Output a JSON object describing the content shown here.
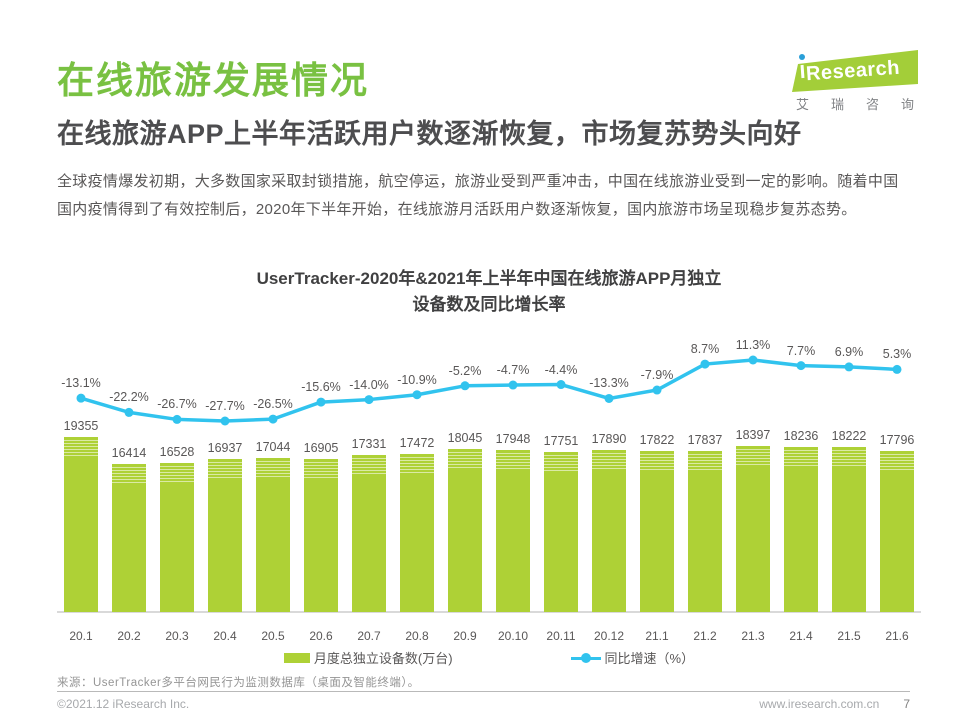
{
  "page": {
    "title": "在线旅游发展情况",
    "subtitle": "在线旅游APP上半年活跃用户数逐渐恢复，市场复苏势头向好",
    "body": "全球疫情爆发初期，大多数国家采取封锁措施，航空停运，旅游业受到严重冲击，中国在线旅游业受到一定的影响。随着中国国内疫情得到了有效控制后，2020年下半年开始，在线旅游月活跃用户数逐渐恢复，国内旅游市场呈现稳步复苏态势。"
  },
  "logo": {
    "brand": "Research",
    "brand_cn": "艾瑞咨询"
  },
  "chart_data": {
    "type": "bar",
    "title": "UserTracker-2020年&2021年上半年中国在线旅游APP月独立设备数及同比增长率",
    "categories": [
      "20.1",
      "20.2",
      "20.3",
      "20.4",
      "20.5",
      "20.6",
      "20.7",
      "20.8",
      "20.9",
      "20.10",
      "20.11",
      "20.12",
      "21.1",
      "21.2",
      "21.3",
      "21.4",
      "21.5",
      "21.6"
    ],
    "series": [
      {
        "name": "月度总独立设备数(万台)",
        "chart": "bar",
        "color": "#aed136",
        "values": [
          19355,
          16414,
          16528,
          16937,
          17044,
          16905,
          17331,
          17472,
          18045,
          17948,
          17751,
          17890,
          17822,
          17837,
          18397,
          18236,
          18222,
          17796
        ]
      },
      {
        "name": "同比增速（%）",
        "chart": "line",
        "color": "#31c3ee",
        "unit": "%",
        "values": [
          -13.1,
          -22.2,
          -26.7,
          -27.7,
          -26.5,
          -15.6,
          -14.0,
          -10.9,
          -5.2,
          -4.7,
          -4.4,
          -13.3,
          -7.9,
          8.7,
          11.3,
          7.7,
          6.9,
          5.3
        ]
      }
    ],
    "legend_position": "bottom",
    "grid": false,
    "bar_axis_range": [
      0,
      19355
    ],
    "line_axis_range": [
      -30,
      13
    ]
  },
  "source": "来源：UserTracker多平台网民行为监测数据库（桌面及智能终端）。",
  "footer": {
    "copyright": "©2021.12 iResearch Inc.",
    "website": "www.iresearch.com.cn",
    "page_number": "7"
  },
  "colors": {
    "title_green": "#79c142",
    "bar_green": "#aed136",
    "line_cyan": "#31c3ee",
    "logo_green": "#a3ce39"
  }
}
